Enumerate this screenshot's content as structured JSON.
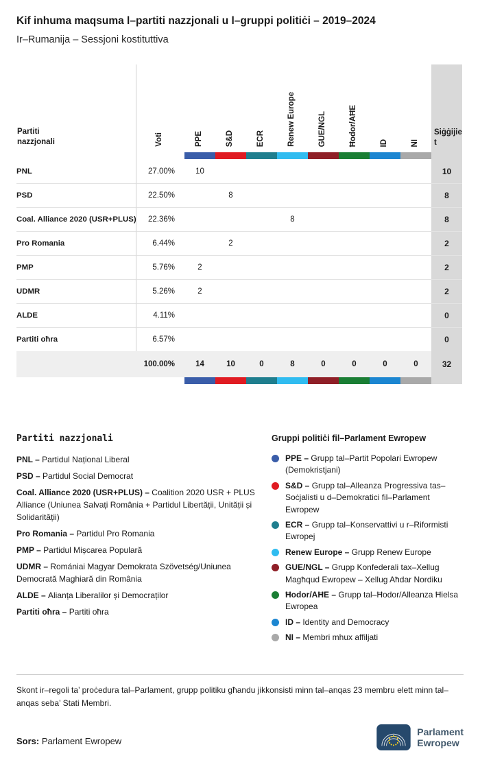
{
  "title": "Kif inhuma maqsuma l–partiti nazzjonali u l–gruppi politiċi – 2019–2024",
  "subtitle": "Ir–Rumanija – Sessjoni kostituttiva",
  "chart_data": {
    "type": "table",
    "row_header_label": "Partiti nazzjonali",
    "voti_label": "Voti",
    "seats_label": "Siġġijiet",
    "groups": [
      {
        "id": "ppe",
        "label": "PPE",
        "color": "#3A5DA9"
      },
      {
        "id": "sd",
        "label": "S&D",
        "color": "#E01B22"
      },
      {
        "id": "ecr",
        "label": "ECR",
        "color": "#1F7E8E"
      },
      {
        "id": "renew",
        "label": "Renew Europe",
        "color": "#30BCF0"
      },
      {
        "id": "gue-ngl",
        "label": "GUE/NGL",
        "color": "#8F1F27"
      },
      {
        "id": "hodor-ahe",
        "label": "Ħodor/AĦE",
        "color": "#1A7E34"
      },
      {
        "id": "id",
        "label": "ID",
        "color": "#1C86D1"
      },
      {
        "id": "ni",
        "label": "NI",
        "color": "#A9A9A9"
      }
    ],
    "rows": [
      {
        "party": "PNL",
        "voti": "27.00%",
        "group_seats": [
          "10",
          "",
          "",
          "",
          "",
          "",
          "",
          ""
        ],
        "seats": "10"
      },
      {
        "party": "PSD",
        "voti": "22.50%",
        "group_seats": [
          "",
          "8",
          "",
          "",
          "",
          "",
          "",
          ""
        ],
        "seats": "8"
      },
      {
        "party": "Coal. Alliance 2020 (USR+PLUS)",
        "voti": "22.36%",
        "group_seats": [
          "",
          "",
          "",
          "8",
          "",
          "",
          "",
          ""
        ],
        "seats": "8"
      },
      {
        "party": "Pro Romania",
        "voti": "6.44%",
        "group_seats": [
          "",
          "2",
          "",
          "",
          "",
          "",
          "",
          ""
        ],
        "seats": "2"
      },
      {
        "party": "PMP",
        "voti": "5.76%",
        "group_seats": [
          "2",
          "",
          "",
          "",
          "",
          "",
          "",
          ""
        ],
        "seats": "2"
      },
      {
        "party": "UDMR",
        "voti": "5.26%",
        "group_seats": [
          "2",
          "",
          "",
          "",
          "",
          "",
          "",
          ""
        ],
        "seats": "2"
      },
      {
        "party": "ALDE",
        "voti": "4.11%",
        "group_seats": [
          "",
          "",
          "",
          "",
          "",
          "",
          "",
          ""
        ],
        "seats": "0"
      },
      {
        "party": "Partiti oħra",
        "voti": "6.57%",
        "group_seats": [
          "",
          "",
          "",
          "",
          "",
          "",
          "",
          ""
        ],
        "seats": "0"
      }
    ],
    "total": {
      "voti": "100.00%",
      "group_seats": [
        "14",
        "10",
        "0",
        "8",
        "0",
        "0",
        "0",
        "0"
      ],
      "seats": "32"
    }
  },
  "legend_parties": {
    "heading": "Partiti nazzjonali",
    "items": [
      {
        "abbr": "PNL –",
        "desc": "Partidul Național Liberal"
      },
      {
        "abbr": "PSD –",
        "desc": "Partidul Social Democrat"
      },
      {
        "abbr": "Coal. Alliance 2020 (USR+PLUS) –",
        "desc": "Coalition 2020 USR + PLUS Alliance (Uniunea Salvați România + Partidul Libertății, Unității și Solidarității)"
      },
      {
        "abbr": "Pro Romania –",
        "desc": "Partidul Pro Romania"
      },
      {
        "abbr": "PMP –",
        "desc": "Partidul Mișcarea Populară"
      },
      {
        "abbr": "UDMR –",
        "desc": "Romániai Magyar Demokrata Szövetség/Uniunea Democrată Maghiară din România"
      },
      {
        "abbr": "ALDE –",
        "desc": "Alianța Liberalilor și Democraților"
      },
      {
        "abbr": "Partiti oħra –",
        "desc": "Partiti oħra"
      }
    ]
  },
  "legend_groups": {
    "heading": "Gruppi politiċi fil–Parlament Ewropew",
    "items": [
      {
        "abbr": "PPE –",
        "desc": "Grupp tal–Partit Popolari Ewropew (Demokristjani)"
      },
      {
        "abbr": "S&D –",
        "desc": "Grupp tal–Alleanza Progressiva tas–Soċjalisti u d–Demokratici fil–Parlament Ewropew"
      },
      {
        "abbr": "ECR –",
        "desc": "Grupp tal–Konservattivi u r–Riformisti Ewropej"
      },
      {
        "abbr": "Renew Europe –",
        "desc": "Grupp Renew Europe"
      },
      {
        "abbr": "GUE/NGL –",
        "desc": "Grupp Konfederali tax–Xellug Magħqud Ewropew – Xellug Aħdar Nordiku"
      },
      {
        "abbr": "Ħodor/AĦE –",
        "desc": "Grupp tal–Ħodor/Alleanza Ħielsa Ewropea"
      },
      {
        "abbr": "ID –",
        "desc": "Identity and Democracy"
      },
      {
        "abbr": "NI –",
        "desc": "Membri mhux affiljati"
      }
    ]
  },
  "footnote": "Skont ir–regoli ta’ proċedura tal–Parlament, grupp politiku għandu jikkonsisti minn tal–anqas 23 membru elett minn tal–anqas seba’ Stati Membri.",
  "source": {
    "label": "Sors:",
    "value": "Parlament Ewropew"
  },
  "logo": {
    "line1": "Parlament",
    "line2": "Ewropew"
  }
}
